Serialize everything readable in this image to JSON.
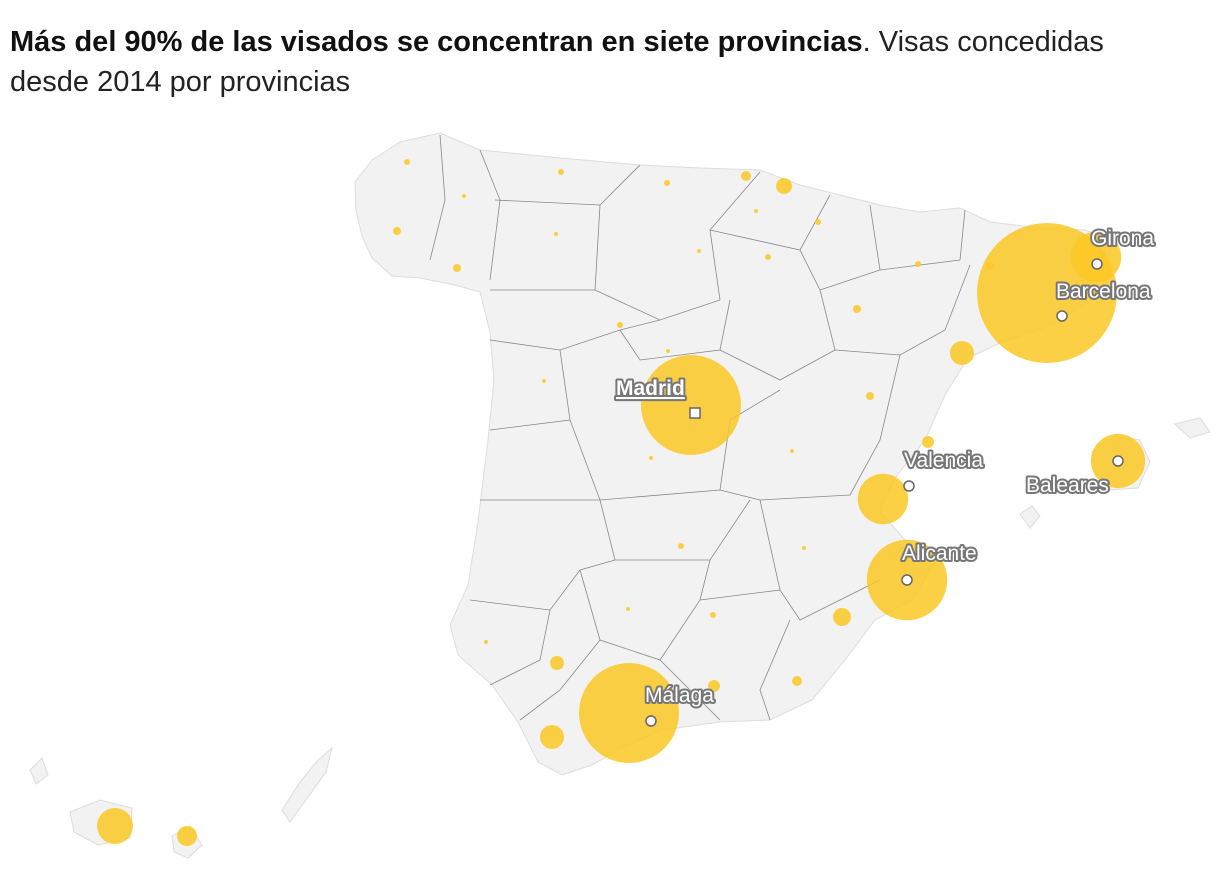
{
  "title": {
    "bold": "Más del 90% de las visados se concentran en siete provincias",
    "normal": ". Visas concedidas desde 2014 por provincias"
  },
  "labels": {
    "madrid": "Madrid",
    "barcelona": "Barcelona",
    "girona": "Girona",
    "valencia": "Valencia",
    "alicante": "Alicante",
    "malaga": "Málaga",
    "baleares": "Baleares"
  },
  "colors": {
    "bubble": "#fcc824",
    "land": "#f2f2f2",
    "border": "#888888"
  },
  "relative_visas": {
    "barcelona": 100,
    "madrid": 51,
    "malaga": 51,
    "alicante": 33,
    "baleares": 15,
    "girona": 13,
    "valencia": 13
  }
}
